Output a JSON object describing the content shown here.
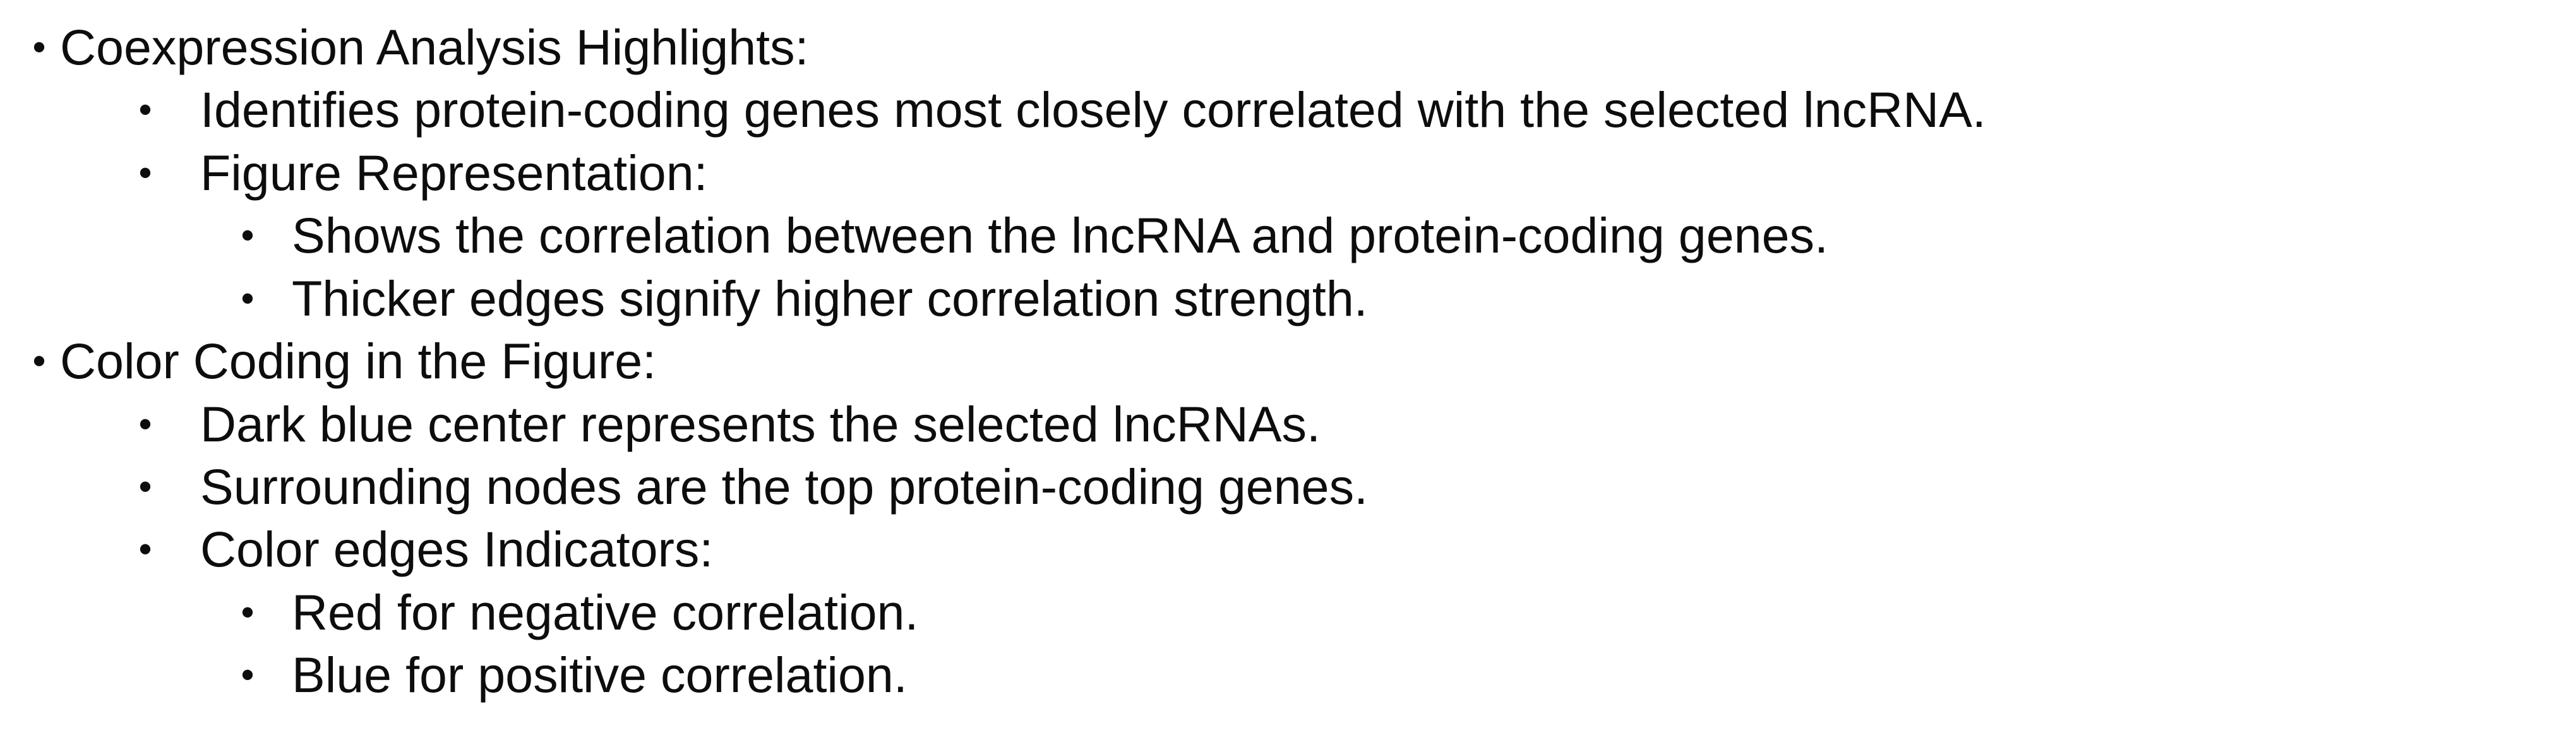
{
  "bullet_char": "•",
  "sections": [
    {
      "heading": "Coexpression Analysis Highlights:",
      "items": [
        {
          "text": "Identifies protein-coding genes most closely correlated with the selected lncRNA."
        },
        {
          "text": "Figure Representation:",
          "subitems": [
            "Shows the correlation between the lncRNA and protein-coding genes.",
            "Thicker edges signify higher correlation strength."
          ]
        }
      ]
    },
    {
      "heading": "Color Coding in the Figure:",
      "items": [
        {
          "text": "Dark blue center represents the selected lncRNAs."
        },
        {
          "text": "Surrounding nodes are the top protein-coding genes."
        },
        {
          "text": "Color edges Indicators:",
          "subitems": [
            "Red for negative correlation.",
            "Blue for positive correlation."
          ]
        }
      ]
    }
  ]
}
